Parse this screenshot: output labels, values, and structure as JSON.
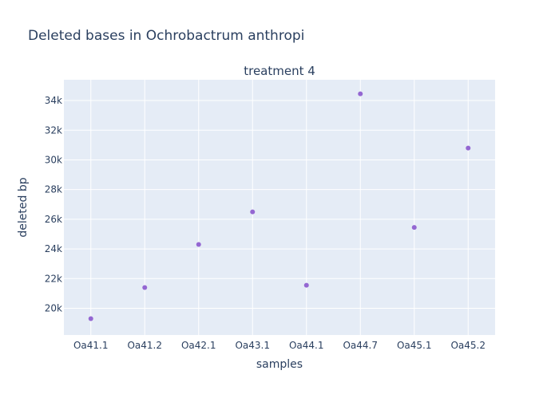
{
  "title": "Deleted bases in Ochrobactrum anthropi",
  "chart_data": {
    "type": "scatter",
    "title": "Deleted bases in Ochrobactrum anthropi",
    "subtitle": "treatment 4",
    "xlabel": "samples",
    "ylabel": "deleted bp",
    "categories": [
      "Oa41.1",
      "Oa41.2",
      "Oa42.1",
      "Oa43.1",
      "Oa44.1",
      "Oa44.7",
      "Oa45.1",
      "Oa45.2"
    ],
    "values": [
      19300,
      21400,
      24300,
      26500,
      21550,
      34450,
      25450,
      30800
    ],
    "ylim": [
      18200,
      35400
    ],
    "yticks": [
      20000,
      22000,
      24000,
      26000,
      28000,
      30000,
      32000,
      34000
    ],
    "ytick_labels": [
      "20k",
      "22k",
      "24k",
      "26k",
      "28k",
      "30k",
      "32k",
      "34k"
    ],
    "grid": true,
    "colors": {
      "marker": "#9467d2",
      "plot_bg": "#e5ecf6",
      "grid": "#ffffff",
      "text": "#2a3f5f"
    }
  }
}
